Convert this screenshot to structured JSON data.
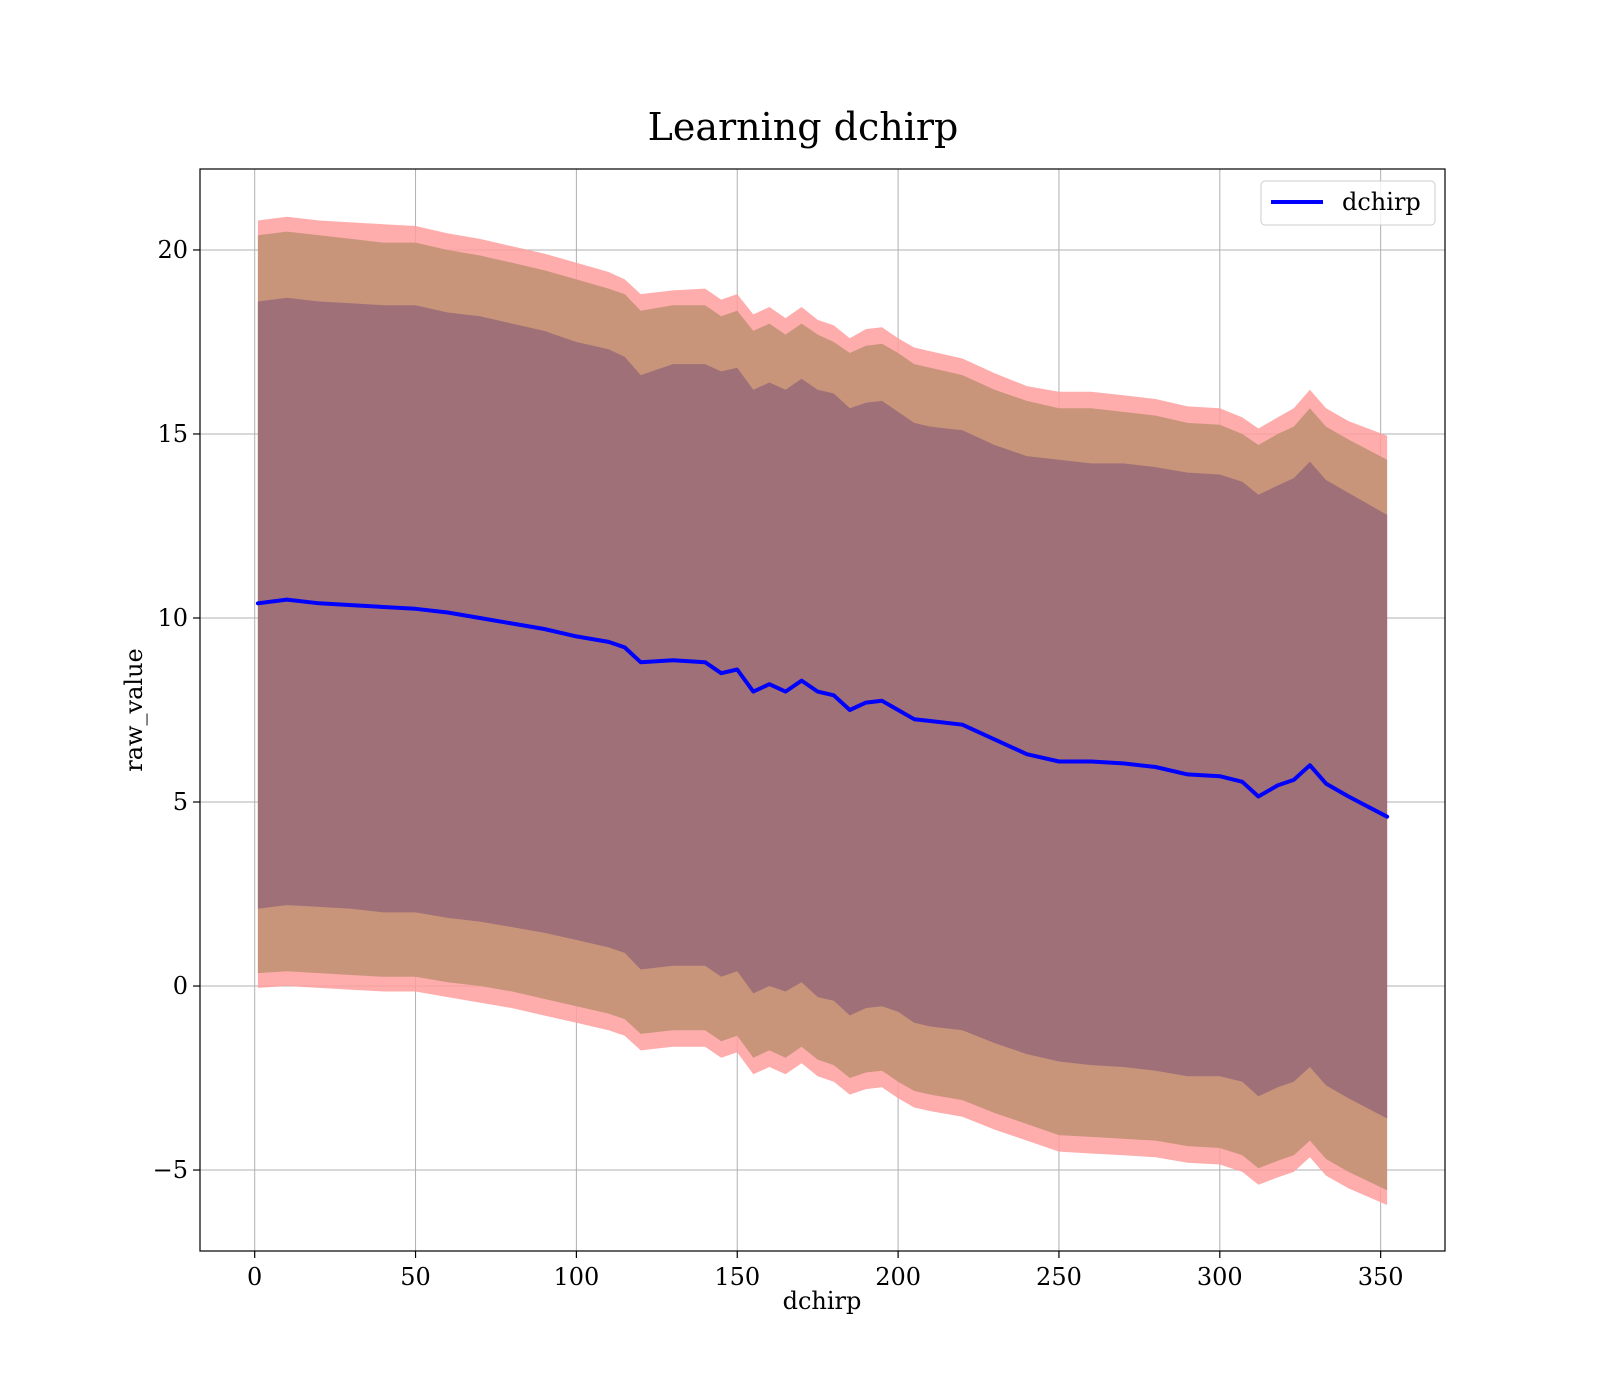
{
  "chart_data": {
    "type": "line",
    "title": "Learning dchirp",
    "xlabel": "dchirp",
    "ylabel": "raw_value",
    "xlim": [
      -17,
      370
    ],
    "ylim": [
      -7.2,
      22.2
    ],
    "xticks": [
      0,
      50,
      100,
      150,
      200,
      250,
      300,
      350
    ],
    "yticks": [
      -5,
      0,
      5,
      10,
      15,
      20
    ],
    "xtick_labels": [
      "0",
      "50",
      "100",
      "150",
      "200",
      "250",
      "300",
      "350"
    ],
    "ytick_labels": [
      "−5",
      "0",
      "5",
      "10",
      "15",
      "20"
    ],
    "grid": true,
    "legend_position": "top-right",
    "legend": [
      {
        "label": "dchirp",
        "color": "#0000ff"
      }
    ],
    "band_colors": {
      "outer": "#ff9e9e",
      "middle": "#c8957a",
      "inner": "#a07079"
    },
    "line_color": "#0000ff",
    "x": [
      1,
      10,
      20,
      30,
      40,
      50,
      60,
      70,
      80,
      90,
      100,
      110,
      115,
      120,
      130,
      140,
      145,
      150,
      155,
      160,
      165,
      170,
      175,
      180,
      185,
      190,
      195,
      200,
      205,
      210,
      220,
      230,
      240,
      250,
      260,
      270,
      280,
      290,
      300,
      307,
      312,
      318,
      323,
      328,
      333,
      340,
      352
    ],
    "series": [
      {
        "name": "dchirp",
        "values": [
          10.4,
          10.5,
          10.4,
          10.35,
          10.3,
          10.25,
          10.15,
          10.0,
          9.85,
          9.7,
          9.5,
          9.35,
          9.2,
          8.8,
          8.85,
          8.8,
          8.5,
          8.6,
          8.0,
          8.2,
          8.0,
          8.3,
          8.0,
          7.9,
          7.5,
          7.7,
          7.75,
          7.5,
          7.25,
          7.2,
          7.1,
          6.7,
          6.3,
          6.1,
          6.1,
          6.05,
          5.95,
          5.75,
          5.7,
          5.55,
          5.15,
          5.45,
          5.6,
          6.0,
          5.5,
          5.15,
          4.6
        ],
        "band_inner_upper": [
          18.6,
          18.7,
          18.6,
          18.55,
          18.5,
          18.5,
          18.3,
          18.2,
          18.0,
          17.8,
          17.5,
          17.3,
          17.1,
          16.6,
          16.9,
          16.9,
          16.7,
          16.8,
          16.2,
          16.4,
          16.2,
          16.5,
          16.2,
          16.1,
          15.7,
          15.85,
          15.9,
          15.6,
          15.3,
          15.2,
          15.1,
          14.7,
          14.4,
          14.3,
          14.2,
          14.2,
          14.1,
          13.95,
          13.9,
          13.7,
          13.35,
          13.6,
          13.8,
          14.25,
          13.75,
          13.4,
          12.8
        ],
        "band_inner_lower": [
          2.1,
          2.2,
          2.15,
          2.1,
          2.0,
          2.0,
          1.85,
          1.75,
          1.6,
          1.45,
          1.25,
          1.05,
          0.9,
          0.45,
          0.55,
          0.55,
          0.25,
          0.4,
          -0.2,
          0.0,
          -0.15,
          0.1,
          -0.3,
          -0.4,
          -0.8,
          -0.6,
          -0.55,
          -0.7,
          -1.0,
          -1.1,
          -1.2,
          -1.55,
          -1.85,
          -2.05,
          -2.15,
          -2.2,
          -2.3,
          -2.45,
          -2.45,
          -2.6,
          -3.0,
          -2.75,
          -2.6,
          -2.2,
          -2.7,
          -3.05,
          -3.6
        ],
        "band_middle_upper": [
          20.4,
          20.5,
          20.4,
          20.3,
          20.2,
          20.2,
          20.0,
          19.85,
          19.65,
          19.45,
          19.2,
          18.95,
          18.8,
          18.35,
          18.5,
          18.5,
          18.2,
          18.35,
          17.8,
          18.0,
          17.7,
          18.0,
          17.7,
          17.5,
          17.2,
          17.4,
          17.45,
          17.2,
          16.9,
          16.8,
          16.6,
          16.2,
          15.9,
          15.7,
          15.7,
          15.6,
          15.5,
          15.3,
          15.25,
          15.0,
          14.7,
          15.0,
          15.2,
          15.7,
          15.2,
          14.85,
          14.3
        ],
        "band_middle_lower": [
          0.35,
          0.4,
          0.35,
          0.3,
          0.25,
          0.25,
          0.1,
          0.0,
          -0.15,
          -0.35,
          -0.55,
          -0.75,
          -0.9,
          -1.3,
          -1.2,
          -1.2,
          -1.5,
          -1.35,
          -1.95,
          -1.75,
          -1.95,
          -1.65,
          -2.0,
          -2.15,
          -2.5,
          -2.35,
          -2.3,
          -2.6,
          -2.85,
          -2.95,
          -3.1,
          -3.45,
          -3.75,
          -4.05,
          -4.1,
          -4.15,
          -4.2,
          -4.35,
          -4.4,
          -4.6,
          -4.95,
          -4.75,
          -4.6,
          -4.2,
          -4.7,
          -5.05,
          -5.55
        ],
        "band_outer_upper": [
          20.8,
          20.9,
          20.8,
          20.75,
          20.7,
          20.65,
          20.45,
          20.3,
          20.1,
          19.9,
          19.65,
          19.4,
          19.2,
          18.8,
          18.9,
          18.95,
          18.65,
          18.8,
          18.25,
          18.45,
          18.15,
          18.45,
          18.1,
          17.95,
          17.6,
          17.85,
          17.9,
          17.6,
          17.35,
          17.25,
          17.05,
          16.65,
          16.3,
          16.15,
          16.15,
          16.05,
          15.95,
          15.75,
          15.7,
          15.45,
          15.15,
          15.45,
          15.7,
          16.2,
          15.7,
          15.35,
          14.95
        ],
        "band_outer_lower": [
          -0.05,
          0.0,
          -0.05,
          -0.1,
          -0.15,
          -0.15,
          -0.3,
          -0.45,
          -0.6,
          -0.8,
          -1.0,
          -1.2,
          -1.35,
          -1.75,
          -1.65,
          -1.65,
          -1.95,
          -1.8,
          -2.4,
          -2.2,
          -2.4,
          -2.1,
          -2.45,
          -2.6,
          -2.95,
          -2.8,
          -2.75,
          -3.05,
          -3.3,
          -3.4,
          -3.55,
          -3.9,
          -4.2,
          -4.5,
          -4.55,
          -4.6,
          -4.65,
          -4.8,
          -4.85,
          -5.05,
          -5.4,
          -5.2,
          -5.05,
          -4.65,
          -5.15,
          -5.5,
          -5.95
        ]
      }
    ]
  }
}
